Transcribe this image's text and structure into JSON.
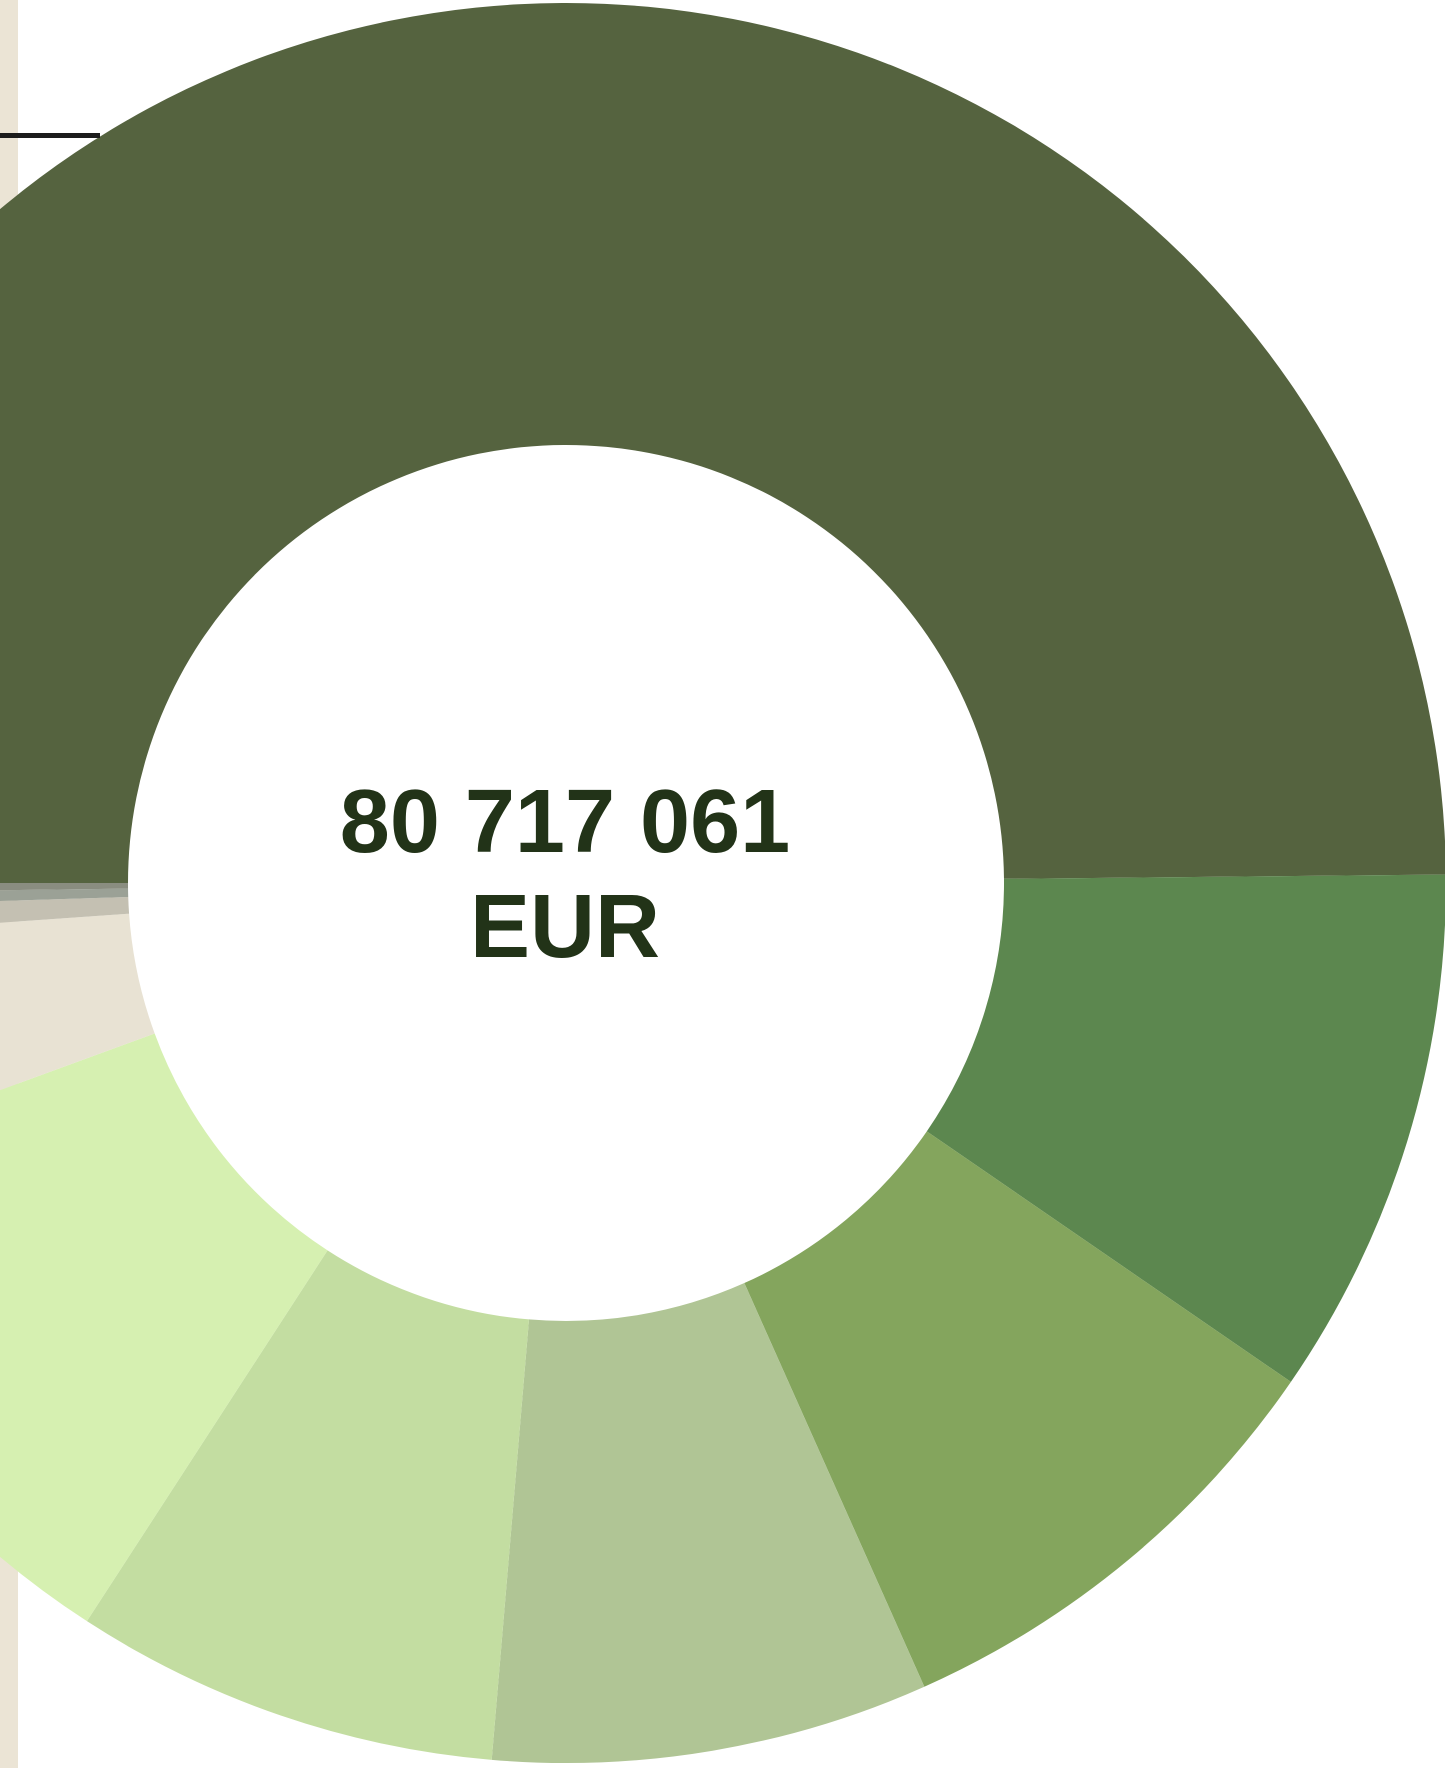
{
  "chart_data": {
    "type": "pie",
    "variant": "donut",
    "total_value": "80 717 061",
    "total_unit": "EUR",
    "start_angle_deg": 180,
    "direction": "clockwise",
    "slices": [
      {
        "value": 49.1,
        "color": "#55633f"
      },
      {
        "value": 9.6,
        "color": "#5c874f"
      },
      {
        "value": 8.6,
        "color": "#84a55d"
      },
      {
        "value": 7.9,
        "color": "#b0c595"
      },
      {
        "value": 7.7,
        "color": "#c3dda1"
      },
      {
        "value": 10.1,
        "color": "#d6f0b1"
      },
      {
        "value": 4.4,
        "color": "#e8e2d3"
      },
      {
        "value": 0.6,
        "color": "#c4c0b2"
      },
      {
        "value": 0.3,
        "color": "#9ba196"
      },
      {
        "value": 0.2,
        "color": "#8a8d80"
      }
    ]
  },
  "colors": {
    "side_strip": "#ebe4d5",
    "label_text": "#223318"
  }
}
